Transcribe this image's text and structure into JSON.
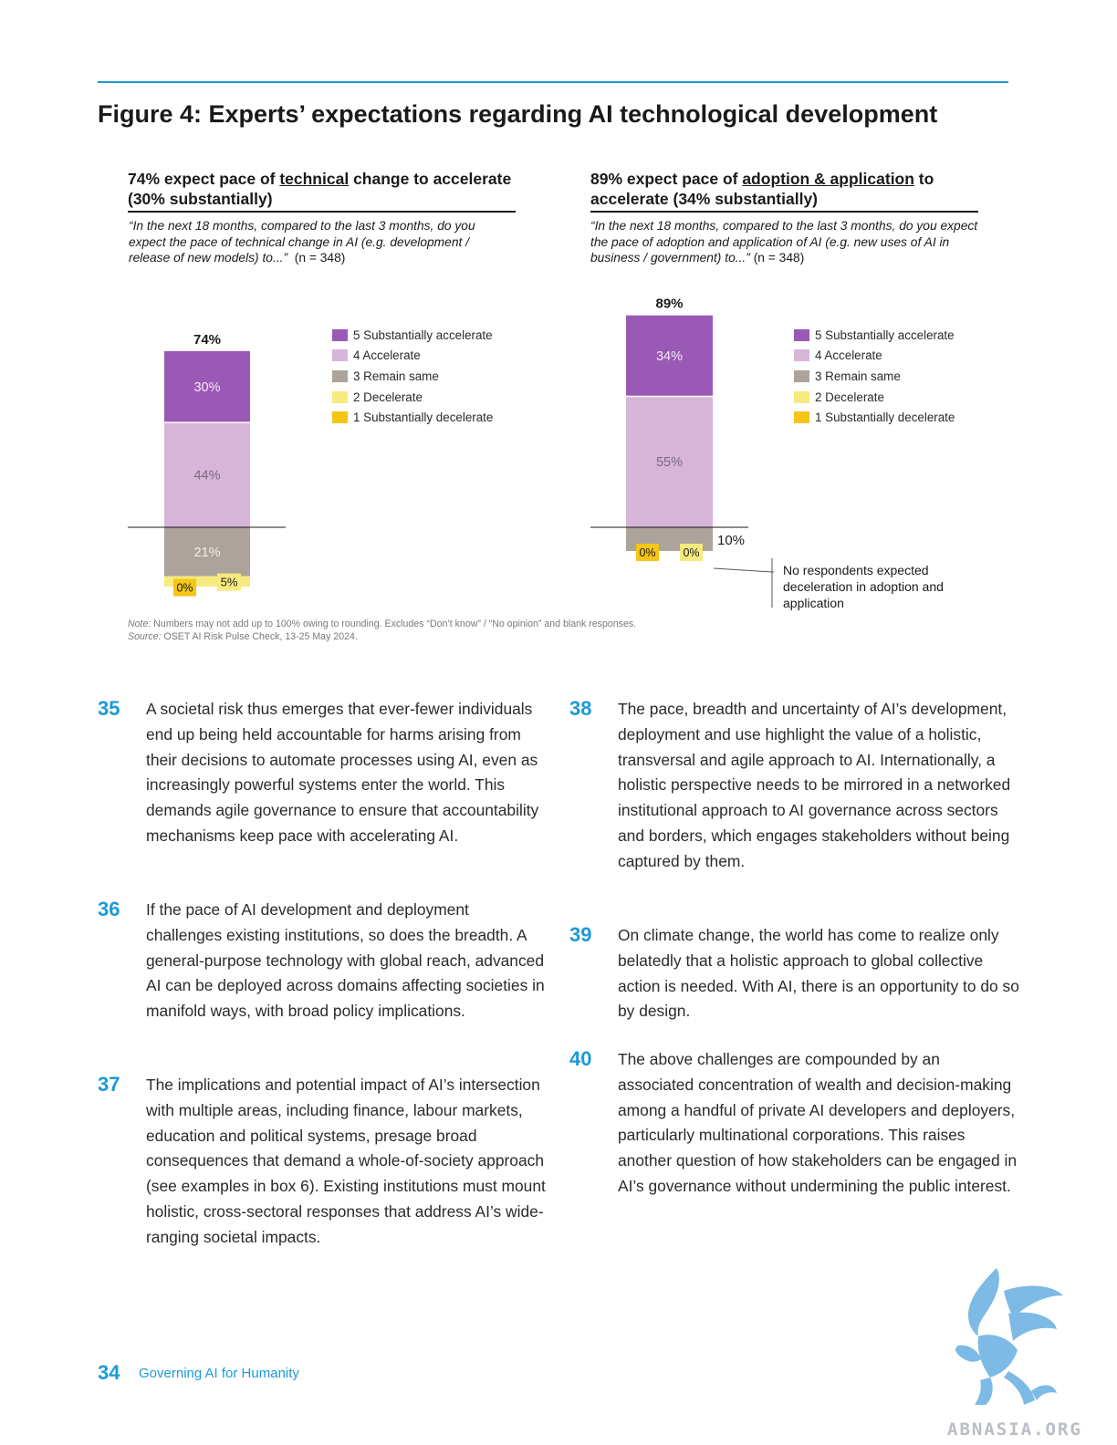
{
  "figure_title": "Figure 4: Experts’ expectations regarding AI technological development",
  "charts": [
    {
      "headline_pre": "74% expect pace of ",
      "headline_underlined": "technical",
      "headline_post": " change to accelerate (30% substantially)",
      "question_italic": "“In the next 18 months, compared to the last 3 months, do you expect the pace of technical change in AI (e.g. development / release of new models) to...”",
      "question_n": "(n = 348)"
    },
    {
      "headline_pre": "89% expect pace of ",
      "headline_underlined": "adoption & application",
      "headline_post": " to accelerate (34% substantially)",
      "question_italic": "“In the next 18 months, compared to the last 3 months, do you expect the pace of adoption and application of AI (e.g. new uses of AI in business / government) to...”",
      "question_n": "(n = 348)"
    }
  ],
  "legend": [
    {
      "label": "5 Substantially accelerate",
      "color": "#9b59b6"
    },
    {
      "label": "4 Accelerate",
      "color": "#d6b5d8"
    },
    {
      "label": "3 Remain same",
      "color": "#aca39a"
    },
    {
      "label": "2 Decelerate",
      "color": "#f7ea7f"
    },
    {
      "label": "1 Substantially decelerate",
      "color": "#f5c518"
    }
  ],
  "chart_data": [
    {
      "type": "bar",
      "stacked": true,
      "categories": [
        "Technical change"
      ],
      "total_label": "74%",
      "series": [
        {
          "name": "5 Substantially accelerate",
          "values": [
            30
          ],
          "label": "30%"
        },
        {
          "name": "4 Accelerate",
          "values": [
            44
          ],
          "label": "44%"
        },
        {
          "name": "3 Remain same",
          "values": [
            21
          ],
          "label": "21%"
        },
        {
          "name": "2 Decelerate",
          "values": [
            5
          ],
          "label": "5%"
        },
        {
          "name": "1 Substantially decelerate",
          "values": [
            0
          ],
          "label": "0%"
        }
      ]
    },
    {
      "type": "bar",
      "stacked": true,
      "categories": [
        "Adoption & application"
      ],
      "total_label": "89%",
      "series": [
        {
          "name": "5 Substantially accelerate",
          "values": [
            34
          ],
          "label": "34%"
        },
        {
          "name": "4 Accelerate",
          "values": [
            55
          ],
          "label": "55%"
        },
        {
          "name": "3 Remain same",
          "values": [
            10
          ],
          "label": "10%"
        },
        {
          "name": "2 Decelerate",
          "values": [
            0
          ],
          "label": "0%"
        },
        {
          "name": "1 Substantially decelerate",
          "values": [
            0
          ],
          "label": "0%"
        }
      ]
    }
  ],
  "callout": "No respondents expected deceleration in adoption and application",
  "note_label": "Note:",
  "note_text": " Numbers may not add up to 100% owing to rounding. Excludes “Don’t know” / “No opinion” and blank responses.",
  "source_label": "Source:",
  "source_text": " OSET AI Risk Pulse Check, 13-25 May 2024.",
  "paragraphs": [
    {
      "num": "35",
      "text": "A societal risk thus emerges that ever-fewer individuals end up being held accountable for harms arising from their decisions to automate processes using AI, even as increasingly powerful systems enter the world. This demands agile governance to ensure that accountability mechanisms keep pace with accelerating AI."
    },
    {
      "num": "36",
      "text": "If the pace of AI development and deployment challenges existing institutions, so does the breadth. A general-purpose technology with global reach, advanced AI can be deployed across domains affecting societies in manifold ways, with broad policy implications."
    },
    {
      "num": "37",
      "text": "The implications and potential impact of AI’s intersection with multiple areas, including finance, labour markets, education and political systems, presage broad consequences that demand a whole-of-society approach (see examples in box 6). Existing institutions must mount holistic, cross-sectoral responses that address AI’s wide-ranging societal impacts."
    },
    {
      "num": "38",
      "text": "The pace, breadth and uncertainty of AI’s development, deployment and use highlight the value of a holistic, transversal and agile approach to AI. Internationally, a holistic perspective needs to be mirrored in a networked institutional approach to AI governance across sectors and borders, which engages stakeholders without being captured by them."
    },
    {
      "num": "39",
      "text": "On climate change, the world has come to realize only belatedly that a holistic approach to global collective action is needed. With AI, there is an opportunity to do so by design."
    },
    {
      "num": "40",
      "text": "The above challenges are compounded by an associated concentration of wealth and decision-making among a handful of private AI developers and deployers, particularly multinational corporations. This raises another question of how stakeholders can be engaged in AI’s governance without undermining the public interest."
    }
  ],
  "footer": {
    "page": "34",
    "title": "Governing AI for Humanity"
  },
  "watermark": "ABNASIA.ORG"
}
